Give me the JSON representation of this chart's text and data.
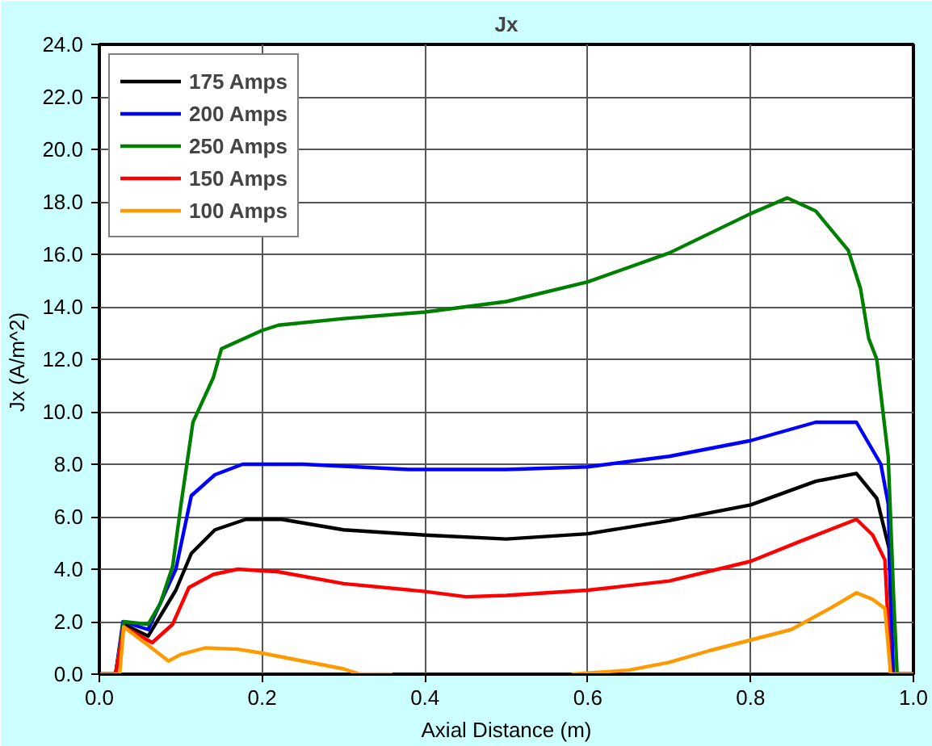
{
  "chart_data": {
    "type": "line",
    "title": "Jx",
    "xlabel": "Axial Distance (m)",
    "ylabel": "Jx  (A/m^2)",
    "xlim": [
      0,
      1
    ],
    "ylim": [
      0,
      24
    ],
    "xticks": [
      {
        "value": 0,
        "label": "0.0"
      },
      {
        "value": 0.2,
        "label": "0.2"
      },
      {
        "value": 0.4,
        "label": "0.4"
      },
      {
        "value": 0.6,
        "label": "0.6"
      },
      {
        "value": 0.8,
        "label": "0.8"
      },
      {
        "value": 1,
        "label": "1.0"
      }
    ],
    "yticks": [
      {
        "value": 0,
        "label": "0.0"
      },
      {
        "value": 2,
        "label": "2.0"
      },
      {
        "value": 4,
        "label": "4.0"
      },
      {
        "value": 6,
        "label": "6.0"
      },
      {
        "value": 8,
        "label": "8.0"
      },
      {
        "value": 10,
        "label": "10.0"
      },
      {
        "value": 12,
        "label": "12.0"
      },
      {
        "value": 14,
        "label": "14.0"
      },
      {
        "value": 16,
        "label": "16.0"
      },
      {
        "value": 18,
        "label": "18.0"
      },
      {
        "value": 20,
        "label": "20.0"
      },
      {
        "value": 22,
        "label": "22.0"
      },
      {
        "value": 24,
        "label": "24.0"
      }
    ],
    "grid": true,
    "legend": "top left",
    "marker": "none",
    "line_style": "solid",
    "series": [
      {
        "name": "175 Amps",
        "color": "#000000",
        "x": [
          0,
          0.02,
          0.03,
          0.06,
          0.094,
          0.113,
          0.142,
          0.18,
          0.224,
          0.3,
          0.4,
          0.5,
          0.6,
          0.7,
          0.8,
          0.88,
          0.93,
          0.955,
          0.97,
          0.975,
          1
        ],
        "values": [
          0,
          0,
          1.9,
          1.45,
          3.2,
          4.6,
          5.5,
          5.9,
          5.9,
          5.5,
          5.3,
          5.15,
          5.35,
          5.85,
          6.45,
          7.35,
          7.65,
          6.7,
          4.8,
          0,
          0
        ]
      },
      {
        "name": "200 Amps",
        "color": "#0000ff",
        "x": [
          0,
          0.02,
          0.029,
          0.06,
          0.094,
          0.113,
          0.142,
          0.176,
          0.25,
          0.38,
          0.5,
          0.6,
          0.7,
          0.8,
          0.88,
          0.93,
          0.96,
          0.969,
          0.975,
          1
        ],
        "values": [
          0,
          0,
          2.0,
          1.7,
          4.0,
          6.8,
          7.6,
          8.0,
          8.0,
          7.8,
          7.8,
          7.9,
          8.3,
          8.9,
          9.6,
          9.6,
          8.0,
          6.5,
          0,
          0
        ]
      },
      {
        "name": "250 Amps",
        "color": "#008000",
        "x": [
          0,
          0.02,
          0.03,
          0.06,
          0.075,
          0.09,
          0.1,
          0.115,
          0.14,
          0.15,
          0.2,
          0.22,
          0.3,
          0.4,
          0.5,
          0.6,
          0.7,
          0.8,
          0.845,
          0.88,
          0.92,
          0.935,
          0.945,
          0.955,
          0.969,
          0.976,
          0.98,
          1
        ],
        "values": [
          0,
          0,
          2.0,
          1.9,
          2.7,
          4.1,
          6.4,
          9.6,
          11.3,
          12.4,
          13.1,
          13.3,
          13.55,
          13.8,
          14.2,
          14.95,
          16.05,
          17.55,
          18.15,
          17.65,
          16.15,
          14.7,
          12.8,
          12.0,
          8.3,
          2.7,
          0,
          0
        ]
      },
      {
        "name": "150 Amps",
        "color": "#ff0000",
        "x": [
          0,
          0.02,
          0.03,
          0.065,
          0.09,
          0.11,
          0.14,
          0.17,
          0.22,
          0.3,
          0.4,
          0.45,
          0.5,
          0.6,
          0.7,
          0.8,
          0.86,
          0.93,
          0.95,
          0.965,
          0.972,
          1
        ],
        "values": [
          0,
          0,
          1.8,
          1.2,
          1.9,
          3.3,
          3.8,
          4.0,
          3.9,
          3.45,
          3.15,
          2.95,
          3.0,
          3.2,
          3.55,
          4.3,
          5.05,
          5.9,
          5.3,
          4.35,
          0,
          0
        ]
      },
      {
        "name": "100 Amps",
        "color": "#ff9900",
        "x": [
          0,
          0.025,
          0.03,
          0.06,
          0.085,
          0.1,
          0.13,
          0.17,
          0.2,
          0.25,
          0.3,
          0.32,
          0.36,
          0.45,
          0.58,
          0.65,
          0.7,
          0.75,
          0.8,
          0.85,
          0.9,
          0.93,
          0.95,
          0.965,
          0.972,
          1
        ],
        "values": [
          0,
          0,
          1.8,
          1.1,
          0.5,
          0.75,
          1.0,
          0.95,
          0.8,
          0.5,
          0.2,
          0,
          0,
          null,
          0,
          0.15,
          0.45,
          0.9,
          1.3,
          1.7,
          2.55,
          3.1,
          2.85,
          2.5,
          0,
          0
        ]
      }
    ]
  }
}
